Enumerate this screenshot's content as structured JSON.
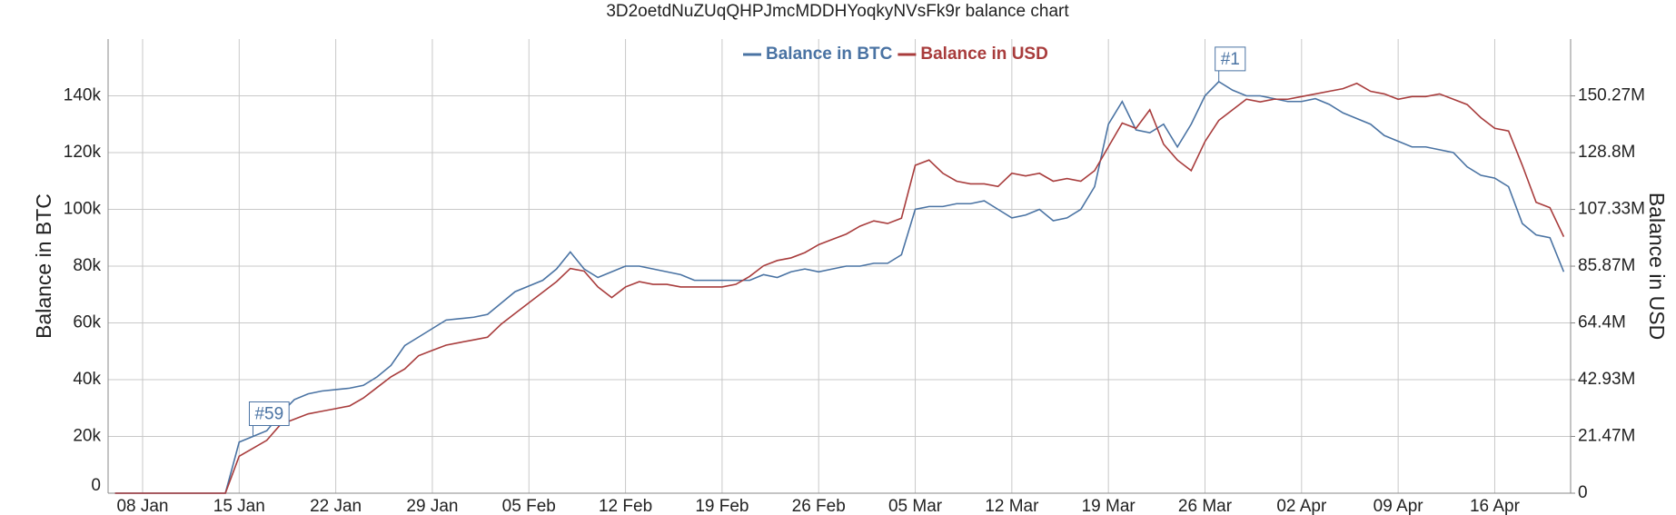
{
  "chart_data": {
    "type": "line",
    "title": "3D2oetdNuZUqQHPJmcMDDHYoqkyNVsFk9r balance chart",
    "y_label": "Balance in BTC",
    "y2_label": "Balance in USD",
    "legend": "top",
    "grid": true,
    "x": [
      "06 Jan",
      "07 Jan",
      "08 Jan",
      "09 Jan",
      "10 Jan",
      "11 Jan",
      "12 Jan",
      "13 Jan",
      "14 Jan",
      "15 Jan",
      "16 Jan",
      "17 Jan",
      "18 Jan",
      "19 Jan",
      "20 Jan",
      "21 Jan",
      "22 Jan",
      "23 Jan",
      "24 Jan",
      "25 Jan",
      "26 Jan",
      "27 Jan",
      "28 Jan",
      "29 Jan",
      "30 Jan",
      "31 Jan",
      "01 Feb",
      "02 Feb",
      "03 Feb",
      "04 Feb",
      "05 Feb",
      "06 Feb",
      "07 Feb",
      "08 Feb",
      "09 Feb",
      "10 Feb",
      "11 Feb",
      "12 Feb",
      "13 Feb",
      "14 Feb",
      "15 Feb",
      "16 Feb",
      "17 Feb",
      "18 Feb",
      "19 Feb",
      "20 Feb",
      "21 Feb",
      "22 Feb",
      "23 Feb",
      "24 Feb",
      "25 Feb",
      "26 Feb",
      "27 Feb",
      "28 Feb",
      "01 Mar",
      "02 Mar",
      "03 Mar",
      "04 Mar",
      "05 Mar",
      "06 Mar",
      "07 Mar",
      "08 Mar",
      "09 Mar",
      "10 Mar",
      "11 Mar",
      "12 Mar",
      "13 Mar",
      "14 Mar",
      "15 Mar",
      "16 Mar",
      "17 Mar",
      "18 Mar",
      "19 Mar",
      "20 Mar",
      "21 Mar",
      "22 Mar",
      "23 Mar",
      "24 Mar",
      "25 Mar",
      "26 Mar",
      "27 Mar",
      "28 Mar",
      "29 Mar",
      "30 Mar",
      "31 Mar",
      "01 Apr",
      "02 Apr",
      "03 Apr",
      "04 Apr",
      "05 Apr",
      "06 Apr",
      "07 Apr",
      "08 Apr",
      "09 Apr",
      "10 Apr",
      "11 Apr",
      "12 Apr",
      "13 Apr",
      "14 Apr",
      "15 Apr",
      "16 Apr",
      "17 Apr",
      "18 Apr",
      "19 Apr",
      "20 Apr",
      "21 Apr"
    ],
    "xticks": [
      "08 Jan",
      "15 Jan",
      "22 Jan",
      "29 Jan",
      "05 Feb",
      "12 Feb",
      "19 Feb",
      "26 Feb",
      "05 Mar",
      "12 Mar",
      "19 Mar",
      "26 Mar",
      "02 Apr",
      "09 Apr",
      "16 Apr"
    ],
    "ylim": [
      0,
      160000
    ],
    "yticks": [
      0,
      {
        "value": 20000,
        "label": "20k"
      },
      {
        "value": 40000,
        "label": "40k"
      },
      {
        "value": 60000,
        "label": "60k"
      },
      {
        "value": 80000,
        "label": "80k"
      },
      {
        "value": 100000,
        "label": "100k"
      },
      {
        "value": 120000,
        "label": "120k"
      },
      {
        "value": 140000,
        "label": "140k"
      }
    ],
    "y2lim": [
      0,
      171760000
    ],
    "y2ticks": [
      0,
      {
        "value": 21470000,
        "label": "21.47M"
      },
      {
        "value": 42930000,
        "label": "42.93M"
      },
      {
        "value": 64400000,
        "label": "64.4M"
      },
      {
        "value": 85870000,
        "label": "85.87M"
      },
      {
        "value": 107330000,
        "label": "107.33M"
      },
      {
        "value": 128800000,
        "label": "128.8M"
      },
      {
        "value": 150270000,
        "label": "150.27M"
      }
    ],
    "series": [
      {
        "name": "Balance in BTC",
        "color": "#4a73a3",
        "values": [
          0,
          0,
          0,
          0,
          0,
          0,
          0,
          0,
          0,
          18000,
          20000,
          22000,
          28000,
          33000,
          35000,
          36000,
          36500,
          37000,
          38000,
          41000,
          45000,
          52000,
          55000,
          58000,
          61000,
          61500,
          62000,
          63000,
          67000,
          71000,
          73000,
          75000,
          79000,
          85000,
          79000,
          76000,
          78000,
          80000,
          80000,
          79000,
          78000,
          77000,
          75000,
          75000,
          75000,
          75000,
          75000,
          77000,
          76000,
          78000,
          79000,
          78000,
          79000,
          80000,
          80000,
          81000,
          81000,
          84000,
          100000,
          101000,
          101000,
          102000,
          102000,
          103000,
          100000,
          97000,
          98000,
          100000,
          96000,
          97000,
          100000,
          108000,
          130000,
          138000,
          128000,
          127000,
          130000,
          122000,
          130000,
          140000,
          145000,
          142000,
          140000,
          140000,
          139000,
          138000,
          138000,
          139000,
          137000,
          134000,
          132000,
          130000,
          126000,
          124000,
          122000,
          122000,
          121000,
          120000,
          115000,
          112000,
          111000,
          108000,
          95000,
          91000,
          90000,
          78000
        ]
      },
      {
        "name": "Balance in USD",
        "color": "#a83c3c",
        "axis": "y2",
        "values": [
          0,
          0,
          0,
          0,
          0,
          0,
          0,
          0,
          0,
          14000000,
          17000000,
          20000000,
          26000000,
          28000000,
          30000000,
          31000000,
          32000000,
          33000000,
          36000000,
          40000000,
          44000000,
          47000000,
          52000000,
          54000000,
          56000000,
          57000000,
          58000000,
          59000000,
          64000000,
          68000000,
          72000000,
          76000000,
          80000000,
          85000000,
          84000000,
          78000000,
          74000000,
          78000000,
          80000000,
          79000000,
          79000000,
          78000000,
          78000000,
          78000000,
          78000000,
          79000000,
          82000000,
          86000000,
          88000000,
          89000000,
          91000000,
          94000000,
          96000000,
          98000000,
          101000000,
          103000000,
          102000000,
          104000000,
          124000000,
          126000000,
          121000000,
          118000000,
          117000000,
          117000000,
          116000000,
          121000000,
          120000000,
          121000000,
          118000000,
          119000000,
          118000000,
          122000000,
          131000000,
          140000000,
          138000000,
          145000000,
          132000000,
          126000000,
          122000000,
          133000000,
          141000000,
          145000000,
          149000000,
          148000000,
          149000000,
          149000000,
          150000000,
          151000000,
          152000000,
          153000000,
          155000000,
          152000000,
          151000000,
          149000000,
          150000000,
          150000000,
          151000000,
          149000000,
          147000000,
          142000000,
          138000000,
          137000000,
          124000000,
          110000000,
          108000000,
          97000000
        ]
      }
    ],
    "annotations": [
      {
        "text": "#59",
        "x": "16 Jan"
      },
      {
        "text": "#1",
        "x": "27 Mar"
      }
    ]
  }
}
